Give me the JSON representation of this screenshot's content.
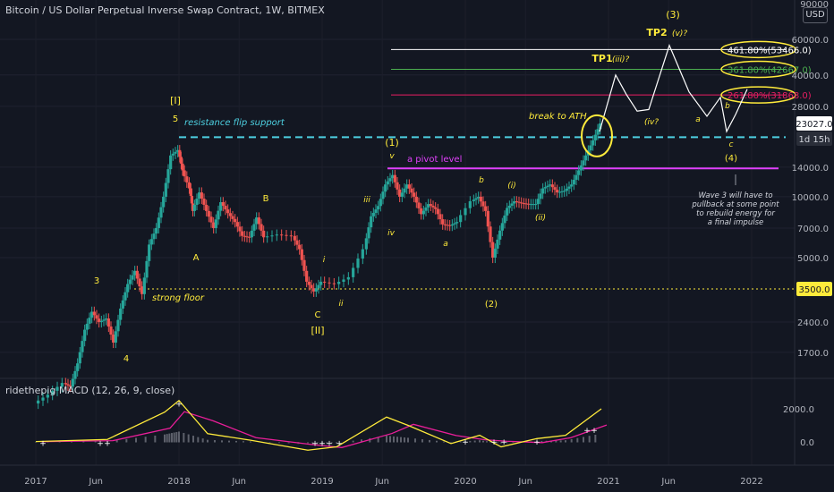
{
  "header": {
    "title": "Bitcoin / US Dollar Perpetual Inverse Swap Contract, 1W, BITMEX",
    "currency": "USD",
    "top_price": "90000"
  },
  "macd": {
    "title": "ridethepig MACD (12, 26, 9, close)",
    "ticks": [
      "2000.0",
      "0.0"
    ]
  },
  "chart_data": {
    "type": "candlestick",
    "title": "Bitcoin / US Dollar Perpetual Inverse Swap Contract, 1W, BITMEX",
    "y_scale": "log",
    "y_ticks": [
      "60000.0",
      "40000.0",
      "28000.0",
      "14000.0",
      "10000.0",
      "7000.0",
      "5000.0",
      "2400.0",
      "1700.0"
    ],
    "x_ticks": [
      "2017",
      "Jun",
      "2018",
      "Jun",
      "2019",
      "Jun",
      "2020",
      "Jun",
      "2021",
      "Jun",
      "2022"
    ],
    "price_labels": [
      {
        "value": "23027.0",
        "kind": "current"
      },
      {
        "value": "1d 15h",
        "kind": "countdown"
      },
      {
        "value": "3500.0",
        "kind": "floor"
      }
    ],
    "levels": [
      {
        "name": "461.80%(53466.0)",
        "price": 53466,
        "color": "#ffffff"
      },
      {
        "name": "361.80%(42667.0)",
        "price": 42667,
        "color": "#4caf50"
      },
      {
        "name": "261.80%(31868.0)",
        "price": 31868,
        "color": "#e91e63"
      },
      {
        "name": "resistance flip support",
        "price": 19700,
        "color": "#4dd0e1"
      },
      {
        "name": "a pivot level",
        "price": 13800,
        "color": "#e040fb"
      },
      {
        "name": "strong floor",
        "price": 3500,
        "color": "#ffeb3b"
      }
    ],
    "annotations": {
      "wave_I": "[I]",
      "wave_5": "5",
      "wave_3": "3",
      "wave_4": "4",
      "wave_A": "A",
      "wave_B": "B",
      "wave_C": "C",
      "wave_II": "[II]",
      "wave_1": "(1)",
      "wave_v": "v",
      "wave_iii": "iii",
      "wave_iv": "iv",
      "wave_i": "i",
      "wave_ii": "ii",
      "wave_a": "a",
      "wave_b": "b",
      "wave_2": "(2)",
      "wave_i_p": "(i)",
      "wave_ii_p": "(ii)",
      "wave_3_big": "(3)",
      "tp2": "TP2",
      "tp2_sub": "(v)?",
      "tp1": "TP1",
      "tp1_sub": "(iii)?",
      "iv_q": "(iv?",
      "proj_a": "a",
      "proj_b": "b",
      "proj_c": "c",
      "wave_4_big": "(4)",
      "break_ath": "break to ATH",
      "note": [
        "Wave 3 will have to",
        "pullback at some point",
        "to rebuild energy for",
        "a final impulse"
      ]
    },
    "price_path": [
      [
        2017.0,
        950
      ],
      [
        2017.1,
        1050
      ],
      [
        2017.2,
        1200
      ],
      [
        2017.25,
        1150
      ],
      [
        2017.3,
        1500
      ],
      [
        2017.35,
        2200
      ],
      [
        2017.4,
        2700
      ],
      [
        2017.45,
        2400
      ],
      [
        2017.5,
        2500
      ],
      [
        2017.55,
        1900
      ],
      [
        2017.6,
        2800
      ],
      [
        2017.65,
        3700
      ],
      [
        2017.7,
        4300
      ],
      [
        2017.75,
        3300
      ],
      [
        2017.8,
        5800
      ],
      [
        2017.85,
        7000
      ],
      [
        2017.9,
        10000
      ],
      [
        2017.95,
        16000
      ],
      [
        2018.0,
        17000
      ],
      [
        2018.03,
        13500
      ],
      [
        2018.08,
        11000
      ],
      [
        2018.1,
        8500
      ],
      [
        2018.15,
        10500
      ],
      [
        2018.2,
        8500
      ],
      [
        2018.25,
        7000
      ],
      [
        2018.3,
        9400
      ],
      [
        2018.35,
        8300
      ],
      [
        2018.4,
        7500
      ],
      [
        2018.45,
        6400
      ],
      [
        2018.5,
        6300
      ],
      [
        2018.55,
        7900
      ],
      [
        2018.6,
        6300
      ],
      [
        2018.7,
        6500
      ],
      [
        2018.8,
        6400
      ],
      [
        2018.85,
        5500
      ],
      [
        2018.9,
        3800
      ],
      [
        2018.95,
        3400
      ],
      [
        2019.0,
        3800
      ],
      [
        2019.1,
        3700
      ],
      [
        2019.2,
        4000
      ],
      [
        2019.3,
        5500
      ],
      [
        2019.35,
        8000
      ],
      [
        2019.4,
        9000
      ],
      [
        2019.45,
        11500
      ],
      [
        2019.5,
        12800
      ],
      [
        2019.55,
        10000
      ],
      [
        2019.6,
        11500
      ],
      [
        2019.65,
        10000
      ],
      [
        2019.7,
        8200
      ],
      [
        2019.75,
        9200
      ],
      [
        2019.8,
        8700
      ],
      [
        2019.85,
        7300
      ],
      [
        2019.9,
        7200
      ],
      [
        2019.95,
        7500
      ],
      [
        2020.05,
        9500
      ],
      [
        2020.1,
        10000
      ],
      [
        2020.15,
        8500
      ],
      [
        2020.2,
        5000
      ],
      [
        2020.25,
        6800
      ],
      [
        2020.3,
        8800
      ],
      [
        2020.35,
        9500
      ],
      [
        2020.4,
        9300
      ],
      [
        2020.45,
        9200
      ],
      [
        2020.5,
        9200
      ],
      [
        2020.55,
        11000
      ],
      [
        2020.6,
        11500
      ],
      [
        2020.65,
        10500
      ],
      [
        2020.7,
        10700
      ],
      [
        2020.75,
        11500
      ],
      [
        2020.8,
        13500
      ],
      [
        2020.85,
        16000
      ],
      [
        2020.9,
        19000
      ],
      [
        2020.95,
        23027
      ]
    ],
    "macd": [
      [
        2017.0,
        20
      ],
      [
        2017.5,
        150
      ],
      [
        2017.9,
        1800
      ],
      [
        2018.0,
        2500
      ],
      [
        2018.2,
        500
      ],
      [
        2018.5,
        100
      ],
      [
        2018.9,
        -500
      ],
      [
        2019.1,
        -300
      ],
      [
        2019.45,
        1500
      ],
      [
        2019.6,
        1000
      ],
      [
        2019.9,
        -100
      ],
      [
        2020.1,
        400
      ],
      [
        2020.25,
        -300
      ],
      [
        2020.5,
        200
      ],
      [
        2020.7,
        400
      ],
      [
        2020.95,
        2000
      ]
    ]
  }
}
